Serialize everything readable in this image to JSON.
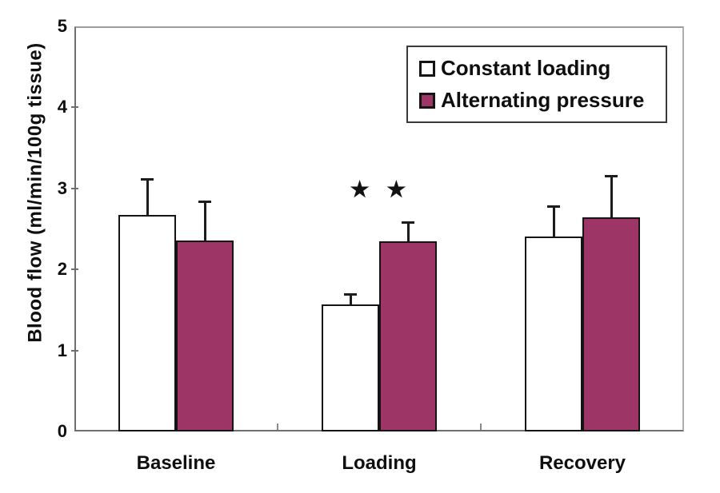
{
  "chart_data": {
    "type": "bar",
    "title": "",
    "ylabel": "Blood flow (ml/min/100g tissue)",
    "xlabel": "",
    "ylim": [
      0,
      5
    ],
    "yticks": [
      0,
      1,
      2,
      3,
      4,
      5
    ],
    "grid": false,
    "legend_position": "top-right",
    "categories": [
      "Baseline",
      "Loading",
      "Recovery"
    ],
    "series": [
      {
        "name": "Constant loading",
        "fill": "#ffffff",
        "values": [
          2.67,
          1.57,
          2.41
        ],
        "errors_up": [
          0.45,
          0.13,
          0.37
        ]
      },
      {
        "name": "Alternating pressure",
        "fill": "#9d3567",
        "values": [
          2.36,
          2.35,
          2.64
        ],
        "errors_up": [
          0.48,
          0.23,
          0.52
        ]
      }
    ],
    "annotation": {
      "text": "★ ★",
      "category_index": 1,
      "y_value": 3.1
    }
  },
  "colors": {
    "bar_border": "#141414",
    "error_bar": "#1c1c1c",
    "axis": "#6f6f6f",
    "text": "#0f0f0f",
    "background": "#ffffff"
  }
}
